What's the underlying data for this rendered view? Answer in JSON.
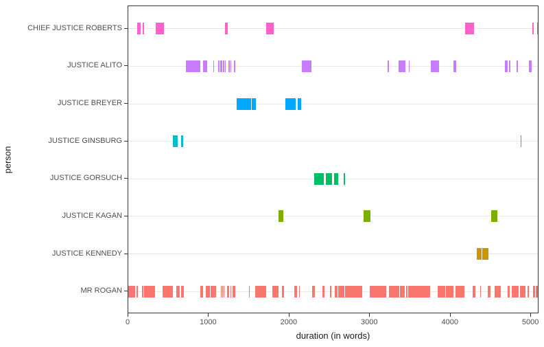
{
  "chart_data": {
    "type": "bar",
    "subtype": "horizontal-interval-timeline",
    "title": "",
    "xlabel": "duration (in words)",
    "ylabel": "person",
    "xlim": [
      0,
      5101
    ],
    "x_ticks": [
      0,
      1000,
      2000,
      3000,
      4000,
      5000
    ],
    "x_tick_labels": [
      "0",
      "1000",
      "2000",
      "3000",
      "4000",
      "5000"
    ],
    "grid": "horizontal major gridlines only",
    "legend": "none",
    "categories": [
      "CHIEF JUSTICE ROBERTS",
      "JUSTICE ALITO",
      "JUSTICE BREYER",
      "JUSTICE GINSBURG",
      "JUSTICE GORSUCH",
      "JUSTICE KAGAN",
      "JUSTICE KENNEDY",
      "MR ROGAN"
    ],
    "series": [
      {
        "name": "CHIEF JUSTICE ROBERTS",
        "color": "#FF61CC",
        "intervals": [
          [
            108,
            156
          ],
          [
            176,
            199
          ],
          [
            341,
            443
          ],
          [
            1204,
            1232
          ],
          [
            1710,
            1802
          ],
          [
            4181,
            4292
          ],
          [
            5020,
            5035
          ],
          [
            5072,
            5096
          ]
        ]
      },
      {
        "name": "JUSTICE ALITO",
        "color": "#C77CFF",
        "intervals": [
          [
            715,
            895
          ],
          [
            928,
            980
          ],
          [
            1056,
            1066
          ],
          [
            1115,
            1135
          ],
          [
            1140,
            1170
          ],
          [
            1178,
            1190
          ],
          [
            1203,
            1212
          ],
          [
            1240,
            1258
          ],
          [
            1271,
            1281
          ],
          [
            1311,
            1329
          ],
          [
            2157,
            2271
          ],
          [
            3222,
            3236
          ],
          [
            3358,
            3440
          ],
          [
            3483,
            3492
          ],
          [
            3755,
            3857
          ],
          [
            4036,
            4070
          ],
          [
            4673,
            4713
          ],
          [
            4723,
            4741
          ],
          [
            4823,
            4840
          ],
          [
            4970,
            5010
          ]
        ]
      },
      {
        "name": "JUSTICE BREYER",
        "color": "#00A9FF",
        "intervals": [
          [
            1346,
            1525
          ],
          [
            1533,
            1584
          ],
          [
            1950,
            2078
          ],
          [
            2103,
            2146
          ]
        ]
      },
      {
        "name": "JUSTICE GINSBURG",
        "color": "#00BFC4",
        "intervals": [
          [
            554,
            613
          ],
          [
            656,
            681
          ],
          [
            4871,
            4880
          ]
        ]
      },
      {
        "name": "JUSTICE GORSUCH",
        "color": "#00BE67",
        "intervals": [
          [
            2308,
            2427
          ],
          [
            2452,
            2529
          ],
          [
            2555,
            2606
          ],
          [
            2674,
            2692
          ]
        ]
      },
      {
        "name": "JUSTICE KAGAN",
        "color": "#7CAE00",
        "intervals": [
          [
            1865,
            1924
          ],
          [
            2921,
            3006
          ],
          [
            4505,
            4580
          ]
        ]
      },
      {
        "name": "JUSTICE KENNEDY",
        "color": "#CD9600",
        "intervals": [
          [
            4326,
            4386
          ],
          [
            4394,
            4470
          ]
        ]
      },
      {
        "name": "MR ROGAN",
        "color": "#F8766D",
        "intervals": [
          [
            0,
            85
          ],
          [
            102,
            119
          ],
          [
            170,
            187
          ],
          [
            196,
            332
          ],
          [
            426,
            554
          ],
          [
            596,
            639
          ],
          [
            656,
            690
          ],
          [
            894,
            928
          ],
          [
            962,
            1013
          ],
          [
            1022,
            1090
          ],
          [
            1150,
            1158
          ],
          [
            1167,
            1175
          ],
          [
            1184,
            1192
          ],
          [
            1227,
            1252
          ],
          [
            1269,
            1278
          ],
          [
            1295,
            1329
          ],
          [
            1499,
            1508
          ],
          [
            1576,
            1710
          ],
          [
            1788,
            1865
          ],
          [
            1907,
            1933
          ],
          [
            2061,
            2095
          ],
          [
            2120,
            2130
          ],
          [
            2282,
            2316
          ],
          [
            2410,
            2435
          ],
          [
            2504,
            2521
          ],
          [
            2563,
            2597
          ],
          [
            2606,
            2682
          ],
          [
            2691,
            2904
          ],
          [
            2997,
            3202
          ],
          [
            3236,
            3364
          ],
          [
            3372,
            3432
          ],
          [
            3449,
            3466
          ],
          [
            3474,
            3747
          ],
          [
            3838,
            3931
          ],
          [
            3945,
            4036
          ],
          [
            4062,
            4173
          ],
          [
            4275,
            4309
          ],
          [
            4368,
            4377
          ],
          [
            4462,
            4496
          ],
          [
            4547,
            4624
          ],
          [
            4706,
            4735
          ],
          [
            4760,
            4845
          ],
          [
            4863,
            4930
          ],
          [
            4956,
            4973
          ],
          [
            5024,
            5050
          ],
          [
            5058,
            5101
          ]
        ]
      }
    ],
    "panel_border_color": "#333333",
    "gridline_color": "#e8e8e8",
    "axis_text_color": "#4d4d4d",
    "axis_title_color": "#1a1a1a"
  }
}
